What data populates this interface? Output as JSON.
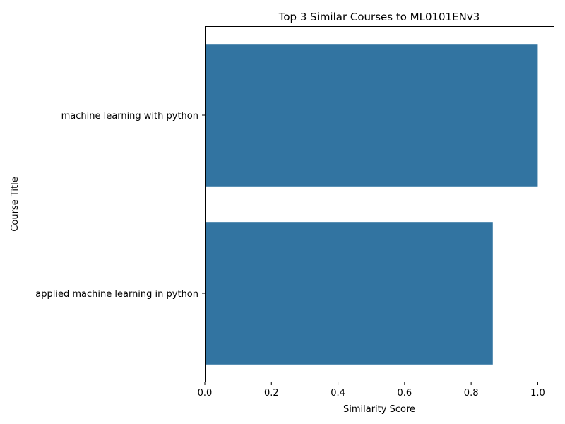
{
  "chart_data": {
    "type": "bar",
    "orientation": "horizontal",
    "title": "Top 3 Similar Courses to ML0101ENv3",
    "xlabel": "Similarity Score",
    "ylabel": "Course Title",
    "categories": [
      "machine learning with python",
      "applied machine learning in python"
    ],
    "values": [
      1.0,
      0.865
    ],
    "xlim": [
      0,
      1.05
    ],
    "xticks": [
      0.0,
      0.2,
      0.4,
      0.6,
      0.8,
      1.0
    ],
    "xtick_labels": [
      "0.0",
      "0.2",
      "0.4",
      "0.6",
      "0.8",
      "1.0"
    ],
    "grid": false,
    "legend": "none",
    "bar_color": "#3274a1"
  }
}
